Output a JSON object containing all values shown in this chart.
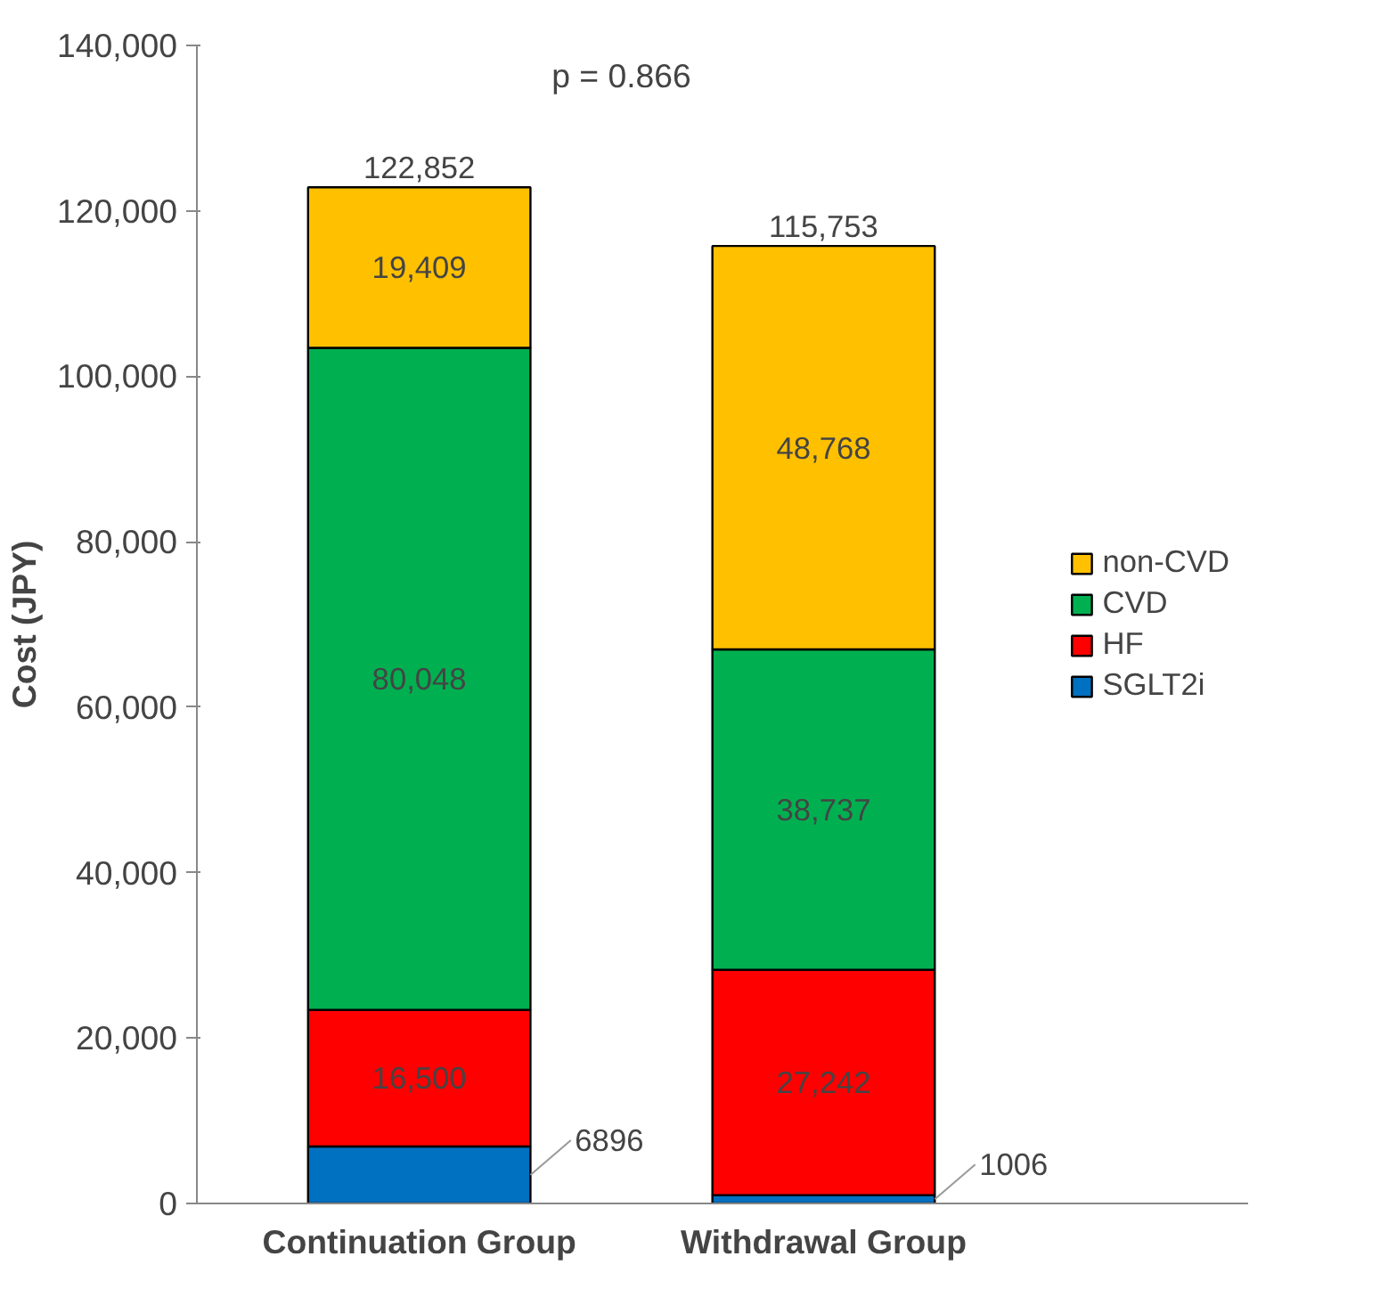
{
  "chart_data": {
    "type": "bar",
    "stacked": true,
    "ylabel": "Cost (JPY)",
    "categories": [
      "Continuation Group",
      "Withdrawal Group"
    ],
    "series": [
      {
        "name": "SGLT2i",
        "color": "#0070c0",
        "values": [
          6896,
          1006
        ],
        "value_labels": [
          "6896",
          "1006"
        ]
      },
      {
        "name": "HF",
        "color": "#ff0000",
        "values": [
          16500,
          27242
        ],
        "value_labels": [
          "16,500",
          "27,242"
        ]
      },
      {
        "name": "CVD",
        "color": "#00b050",
        "values": [
          80048,
          38737
        ],
        "value_labels": [
          "80,048",
          "38,737"
        ]
      },
      {
        "name": "non-CVD",
        "color": "#ffc000",
        "values": [
          19409,
          48768
        ],
        "value_labels": [
          "19,409",
          "48,768"
        ]
      }
    ],
    "totals": [
      "122,852",
      "115,753"
    ],
    "annotations": [
      "p = 0.866"
    ],
    "ylim": [
      0,
      140000
    ],
    "yticks": [
      0,
      {
        "value": 20000,
        "label": "20,000"
      },
      {
        "value": 40000,
        "label": "40,000"
      },
      {
        "value": 60000,
        "label": "60,000"
      },
      {
        "value": 80000,
        "label": "80,000"
      },
      {
        "value": 100000,
        "label": "100,000"
      },
      {
        "value": 120000,
        "label": "120,000"
      },
      {
        "value": 140000,
        "label": "140,000"
      }
    ],
    "legend": "right",
    "grid": false
  }
}
